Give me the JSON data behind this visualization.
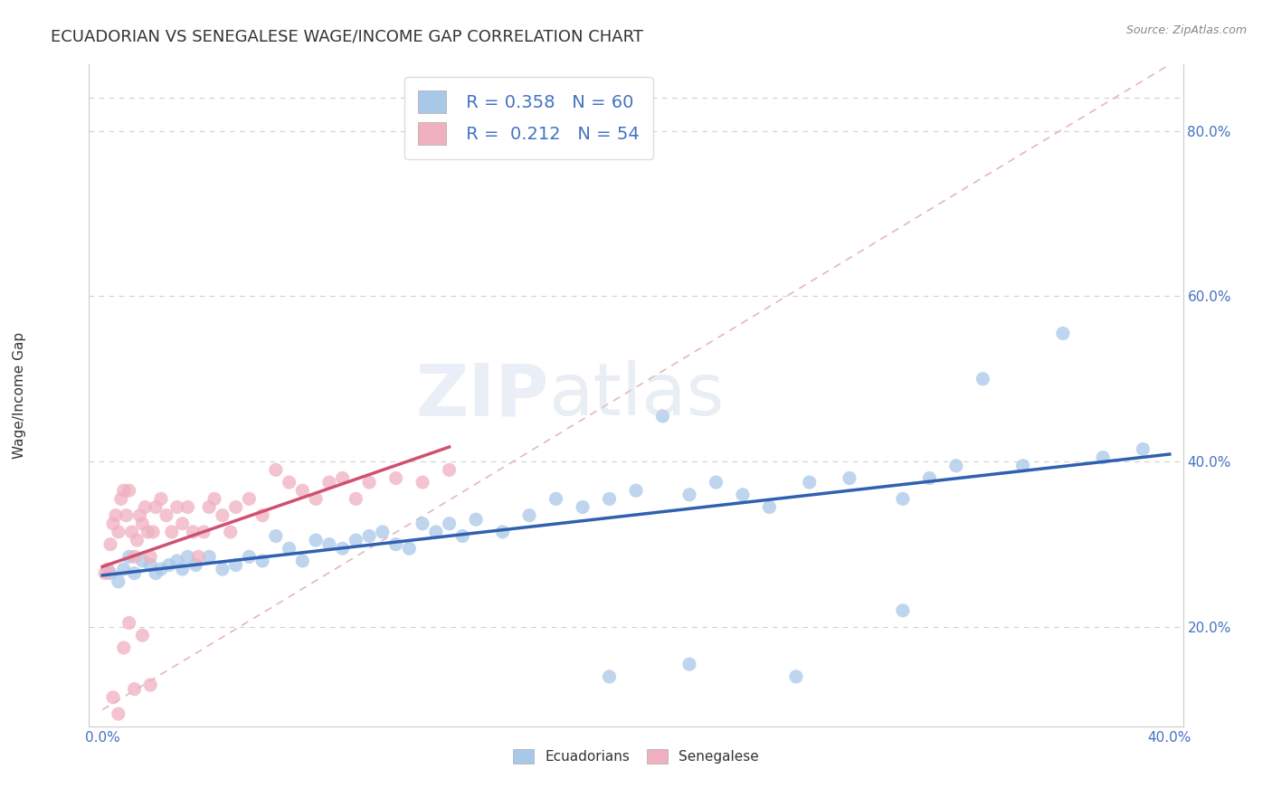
{
  "title": "ECUADORIAN VS SENEGALESE WAGE/INCOME GAP CORRELATION CHART",
  "source_text": "Source: ZipAtlas.com",
  "ylabel": "Wage/Income Gap",
  "xlim": [
    -0.005,
    0.405
  ],
  "ylim": [
    0.08,
    0.88
  ],
  "xticks": [
    0.0,
    0.4
  ],
  "xticklabels": [
    "0.0%",
    "40.0%"
  ],
  "yticks": [
    0.2,
    0.4,
    0.6,
    0.8
  ],
  "yticklabels": [
    "20.0%",
    "40.0%",
    "60.0%",
    "80.0%"
  ],
  "legend_R1": "0.358",
  "legend_N1": "60",
  "legend_R2": "0.212",
  "legend_N2": "54",
  "blue_color": "#a8c8e8",
  "pink_color": "#f0b0c0",
  "trend_blue": "#3060b0",
  "trend_pink": "#d05070",
  "diagonal_color": "#e0b0b8",
  "title_fontsize": 13,
  "axis_label_fontsize": 11,
  "tick_fontsize": 11,
  "watermark_zip": "ZIP",
  "watermark_atlas": "atlas",
  "blue_scatter_x": [
    0.003,
    0.006,
    0.008,
    0.01,
    0.012,
    0.015,
    0.018,
    0.02,
    0.022,
    0.025,
    0.028,
    0.03,
    0.032,
    0.035,
    0.04,
    0.045,
    0.05,
    0.055,
    0.06,
    0.065,
    0.07,
    0.075,
    0.08,
    0.085,
    0.09,
    0.095,
    0.1,
    0.105,
    0.11,
    0.115,
    0.12,
    0.125,
    0.13,
    0.135,
    0.14,
    0.15,
    0.16,
    0.17,
    0.18,
    0.19,
    0.2,
    0.21,
    0.22,
    0.23,
    0.24,
    0.25,
    0.265,
    0.28,
    0.3,
    0.31,
    0.32,
    0.33,
    0.345,
    0.36,
    0.375,
    0.39,
    0.19,
    0.22,
    0.26,
    0.3
  ],
  "blue_scatter_y": [
    0.265,
    0.255,
    0.27,
    0.285,
    0.265,
    0.28,
    0.275,
    0.265,
    0.27,
    0.275,
    0.28,
    0.27,
    0.285,
    0.275,
    0.285,
    0.27,
    0.275,
    0.285,
    0.28,
    0.31,
    0.295,
    0.28,
    0.305,
    0.3,
    0.295,
    0.305,
    0.31,
    0.315,
    0.3,
    0.295,
    0.325,
    0.315,
    0.325,
    0.31,
    0.33,
    0.315,
    0.335,
    0.355,
    0.345,
    0.355,
    0.365,
    0.455,
    0.36,
    0.375,
    0.36,
    0.345,
    0.375,
    0.38,
    0.355,
    0.38,
    0.395,
    0.5,
    0.395,
    0.555,
    0.405,
    0.415,
    0.14,
    0.155,
    0.14,
    0.22
  ],
  "pink_scatter_x": [
    0.001,
    0.002,
    0.003,
    0.004,
    0.005,
    0.006,
    0.007,
    0.008,
    0.009,
    0.01,
    0.011,
    0.012,
    0.013,
    0.014,
    0.015,
    0.016,
    0.017,
    0.018,
    0.019,
    0.02,
    0.022,
    0.024,
    0.026,
    0.028,
    0.03,
    0.032,
    0.034,
    0.036,
    0.038,
    0.04,
    0.042,
    0.045,
    0.048,
    0.05,
    0.055,
    0.06,
    0.065,
    0.07,
    0.075,
    0.08,
    0.085,
    0.09,
    0.095,
    0.1,
    0.11,
    0.12,
    0.13,
    0.008,
    0.01,
    0.015,
    0.004,
    0.006,
    0.012,
    0.018
  ],
  "pink_scatter_y": [
    0.265,
    0.27,
    0.3,
    0.325,
    0.335,
    0.315,
    0.355,
    0.365,
    0.335,
    0.365,
    0.315,
    0.285,
    0.305,
    0.335,
    0.325,
    0.345,
    0.315,
    0.285,
    0.315,
    0.345,
    0.355,
    0.335,
    0.315,
    0.345,
    0.325,
    0.345,
    0.315,
    0.285,
    0.315,
    0.345,
    0.355,
    0.335,
    0.315,
    0.345,
    0.355,
    0.335,
    0.39,
    0.375,
    0.365,
    0.355,
    0.375,
    0.38,
    0.355,
    0.375,
    0.38,
    0.375,
    0.39,
    0.175,
    0.205,
    0.19,
    0.115,
    0.095,
    0.125,
    0.13
  ]
}
